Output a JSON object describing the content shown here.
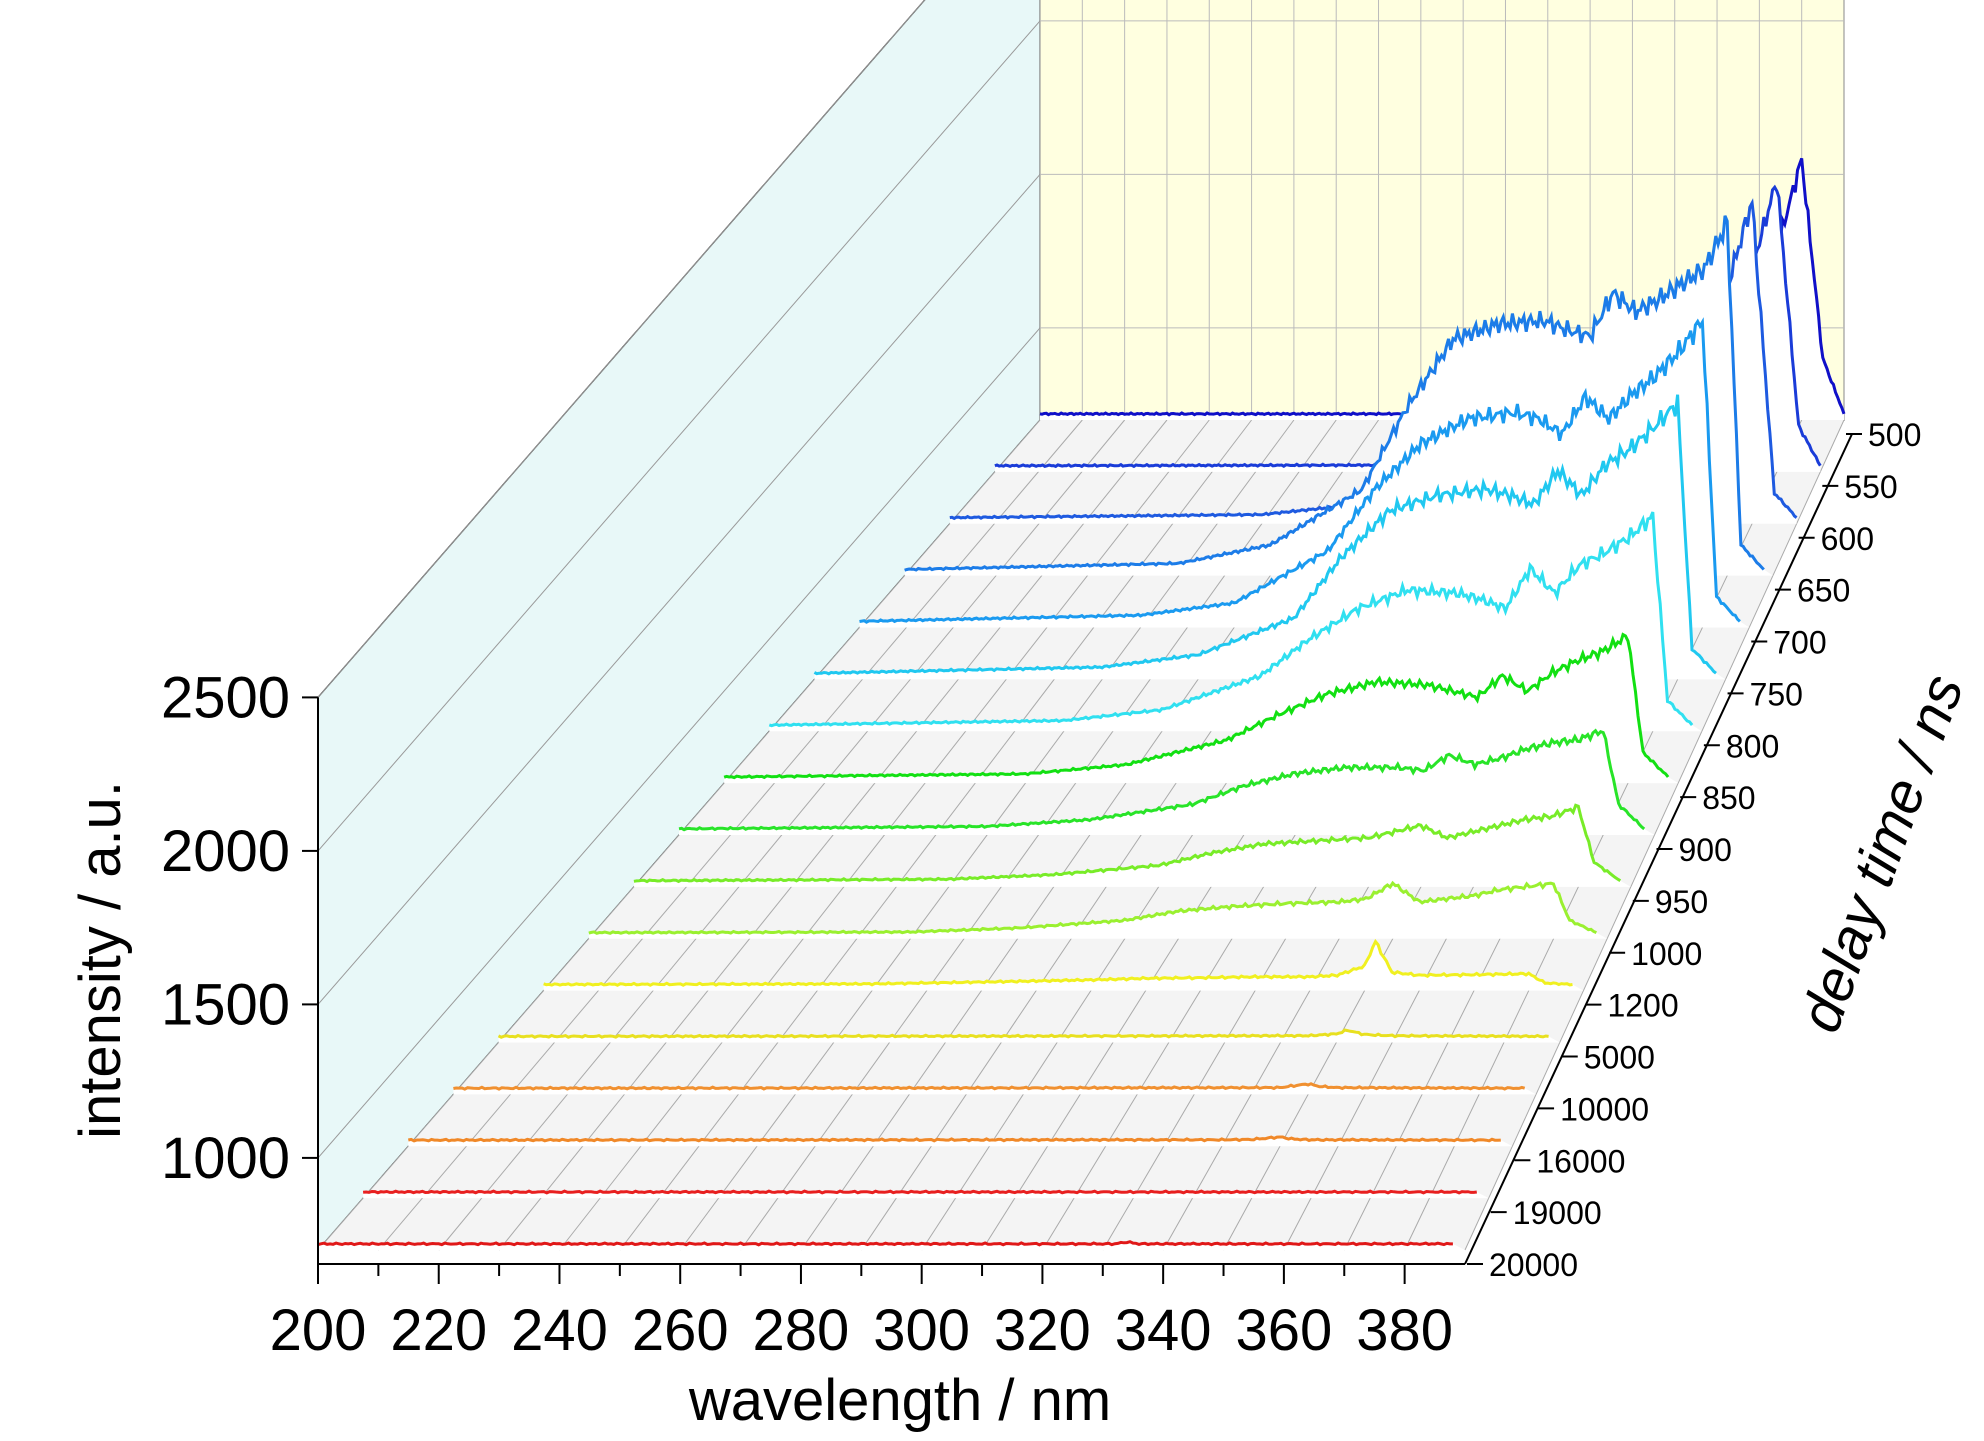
{
  "chart_data": {
    "type": "line",
    "subtype": "3d-waterfall",
    "title": "",
    "xlabel": "wavelength / nm",
    "ylabel": "intensity / a.u.",
    "zlabel": "delay time / ns",
    "xlim": [
      200,
      390
    ],
    "ylim": [
      700,
      2500
    ],
    "x_ticks": [
      "200",
      "220",
      "240",
      "260",
      "280",
      "300",
      "320",
      "340",
      "360",
      "380"
    ],
    "y_ticks": [
      "1000",
      "1500",
      "2000",
      "2500"
    ],
    "z_ticks": [
      "500",
      "550",
      "600",
      "650",
      "700",
      "750",
      "800",
      "850",
      "900",
      "950",
      "1000",
      "1200",
      "5000",
      "10000",
      "16000",
      "19000",
      "20000"
    ],
    "grid": true,
    "series": [
      {
        "name": "500",
        "color": "#1010c8",
        "x": [
          200,
          290,
          300,
          320,
          340,
          345,
          350,
          360,
          365,
          370,
          375,
          380,
          385,
          390
        ],
        "y": [
          720,
          720,
          730,
          760,
          800,
          850,
          900,
          1000,
          1050,
          1150,
          1300,
          1550,
          900,
          720
        ]
      },
      {
        "name": "550",
        "color": "#1a3cd8",
        "x": [
          200,
          290,
          300,
          320,
          340,
          345,
          350,
          360,
          365,
          370,
          375,
          380,
          385,
          390
        ],
        "y": [
          720,
          722,
          740,
          780,
          850,
          900,
          950,
          1050,
          1100,
          1200,
          1400,
          1650,
          850,
          720
        ]
      },
      {
        "name": "600",
        "color": "#1e5ae0",
        "x": [
          200,
          270,
          290,
          300,
          320,
          340,
          345,
          350,
          360,
          365,
          370,
          375,
          380,
          385,
          390
        ],
        "y": [
          720,
          730,
          760,
          800,
          880,
          950,
          1000,
          1050,
          1150,
          1200,
          1300,
          1500,
          1750,
          800,
          720
        ]
      },
      {
        "name": "650",
        "color": "#1c7ce8",
        "x": [
          200,
          260,
          280,
          300,
          310,
          320,
          330,
          340,
          345,
          350,
          355,
          360,
          365,
          370,
          375,
          380,
          383,
          388
        ],
        "y": [
          720,
          740,
          800,
          980,
          1250,
          1470,
          1520,
          1530,
          1500,
          1480,
          1620,
          1560,
          1600,
          1650,
          1700,
          1850,
          800,
          720
        ]
      },
      {
        "name": "700",
        "color": "#1a9af0",
        "x": [
          200,
          260,
          280,
          300,
          310,
          320,
          330,
          340,
          345,
          350,
          355,
          360,
          365,
          370,
          375,
          380,
          383,
          388
        ],
        "y": [
          720,
          740,
          780,
          950,
          1150,
          1300,
          1380,
          1400,
          1380,
          1330,
          1450,
          1380,
          1460,
          1520,
          1600,
          1700,
          800,
          720
        ]
      },
      {
        "name": "750",
        "color": "#20c8f0",
        "x": [
          200,
          260,
          280,
          300,
          310,
          320,
          330,
          340,
          345,
          350,
          355,
          360,
          365,
          370,
          375,
          380,
          383,
          388
        ],
        "y": [
          720,
          740,
          780,
          900,
          1100,
          1250,
          1300,
          1320,
          1300,
          1270,
          1380,
          1300,
          1400,
          1450,
          1520,
          1600,
          800,
          720
        ]
      },
      {
        "name": "800",
        "color": "#30e0f0",
        "x": [
          200,
          260,
          280,
          300,
          310,
          320,
          330,
          340,
          345,
          350,
          355,
          360,
          365,
          370,
          375,
          380,
          383,
          388
        ],
        "y": [
          720,
          735,
          770,
          880,
          1000,
          1100,
          1160,
          1150,
          1130,
          1100,
          1230,
          1150,
          1240,
          1280,
          1330,
          1400,
          800,
          720
        ]
      },
      {
        "name": "850",
        "color": "#12e012",
        "x": [
          200,
          260,
          280,
          300,
          310,
          320,
          330,
          340,
          345,
          350,
          355,
          360,
          365,
          370,
          375,
          380,
          383,
          388
        ],
        "y": [
          720,
          730,
          760,
          840,
          920,
          990,
          1030,
          1020,
          1000,
          980,
          1050,
          1000,
          1060,
          1100,
          1130,
          1180,
          800,
          720
        ]
      },
      {
        "name": "900",
        "color": "#28e428",
        "x": [
          200,
          260,
          280,
          300,
          310,
          320,
          330,
          340,
          345,
          350,
          355,
          360,
          365,
          370,
          375,
          380,
          383,
          388
        ],
        "y": [
          720,
          728,
          750,
          800,
          860,
          900,
          920,
          920,
          910,
          960,
          930,
          950,
          980,
          1000,
          1010,
          1040,
          800,
          720
        ]
      },
      {
        "name": "950",
        "color": "#78ec28",
        "x": [
          200,
          260,
          280,
          300,
          310,
          320,
          330,
          340,
          345,
          350,
          355,
          360,
          365,
          370,
          375,
          380,
          383,
          388
        ],
        "y": [
          720,
          725,
          740,
          770,
          810,
          840,
          850,
          860,
          880,
          900,
          860,
          880,
          900,
          920,
          930,
          960,
          780,
          720
        ]
      },
      {
        "name": "1000",
        "color": "#9af030",
        "x": [
          200,
          260,
          280,
          300,
          310,
          320,
          330,
          340,
          345,
          350,
          355,
          360,
          365,
          370,
          375,
          380,
          383,
          388
        ],
        "y": [
          720,
          722,
          735,
          760,
          790,
          805,
          815,
          820,
          830,
          880,
          820,
          830,
          840,
          860,
          870,
          880,
          760,
          720
        ]
      },
      {
        "name": "1200",
        "color": "#f0f020",
        "x": [
          200,
          260,
          280,
          300,
          310,
          320,
          330,
          340,
          345,
          350,
          352,
          355,
          360,
          370,
          380,
          383,
          388
        ],
        "y": [
          720,
          722,
          728,
          735,
          740,
          742,
          745,
          745,
          750,
          780,
          860,
          760,
          750,
          752,
          755,
          725,
          720
        ]
      },
      {
        "name": "5000",
        "color": "#e8e020",
        "x": [
          200,
          300,
          340,
          345,
          350,
          352,
          355,
          360,
          388
        ],
        "y": [
          720,
          721,
          722,
          722,
          728,
          740,
          726,
          722,
          720
        ]
      },
      {
        "name": "10000",
        "color": "#f09030",
        "x": [
          200,
          300,
          340,
          345,
          350,
          352,
          355,
          388
        ],
        "y": [
          720,
          721,
          722,
          722,
          734,
          726,
          722,
          720
        ]
      },
      {
        "name": "16000",
        "color": "#f08828",
        "x": [
          200,
          300,
          340,
          345,
          350,
          352,
          355,
          388
        ],
        "y": [
          720,
          721,
          721,
          722,
          730,
          724,
          721,
          720
        ]
      },
      {
        "name": "19000",
        "color": "#e82020",
        "x": [
          200,
          388
        ],
        "y": [
          720,
          720
        ]
      },
      {
        "name": "20000",
        "color": "#e01818",
        "x": [
          200,
          320,
          332,
          334,
          336,
          388
        ],
        "y": [
          720,
          720,
          720,
          726,
          720,
          720
        ]
      }
    ]
  }
}
